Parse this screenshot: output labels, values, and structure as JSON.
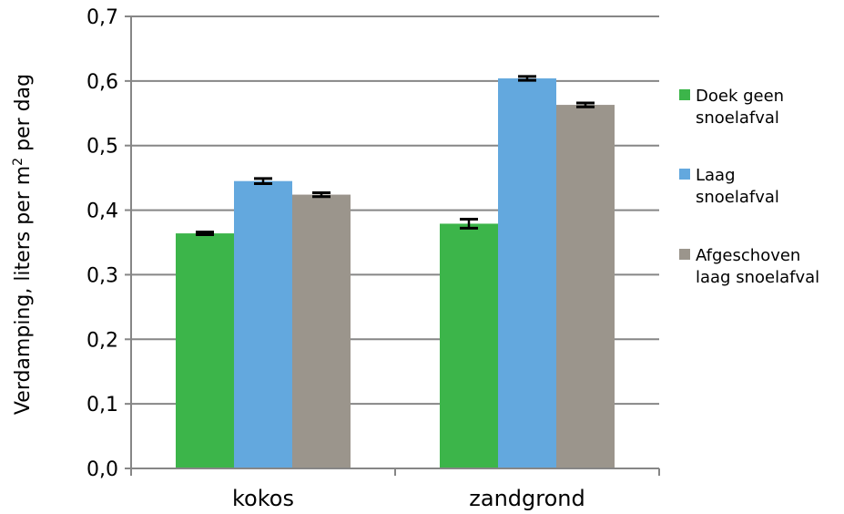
{
  "chart_data": {
    "type": "bar",
    "categories": [
      "kokos",
      "zandgrond"
    ],
    "series": [
      {
        "name": "Doek geen snoelafval",
        "legend_lines": [
          "Doek geen",
          "snoelafval"
        ],
        "color": "#3cb54a",
        "values": [
          0.364,
          0.379
        ],
        "errors": [
          0.002,
          0.007
        ]
      },
      {
        "name": "Laag snoelafval",
        "legend_lines": [
          "Laag",
          "snoelafval"
        ],
        "color": "#63a8de",
        "values": [
          0.445,
          0.604
        ],
        "errors": [
          0.004,
          0.003
        ]
      },
      {
        "name": "Afgeschoven laag snoelafval",
        "legend_lines": [
          "Afgeschoven",
          "laag snoelafval"
        ],
        "color": "#9b958c",
        "values": [
          0.424,
          0.563
        ],
        "errors": [
          0.003,
          0.003
        ]
      }
    ],
    "ylabel_parts": [
      "Verdamping, liters per m",
      "2",
      "  per dag"
    ],
    "ylim": [
      0,
      0.7
    ],
    "yticks": [
      "0,0",
      "0,1",
      "0,2",
      "0,3",
      "0,4",
      "0,5",
      "0,6",
      "0,7"
    ],
    "grid": true,
    "legend_position": "right"
  }
}
